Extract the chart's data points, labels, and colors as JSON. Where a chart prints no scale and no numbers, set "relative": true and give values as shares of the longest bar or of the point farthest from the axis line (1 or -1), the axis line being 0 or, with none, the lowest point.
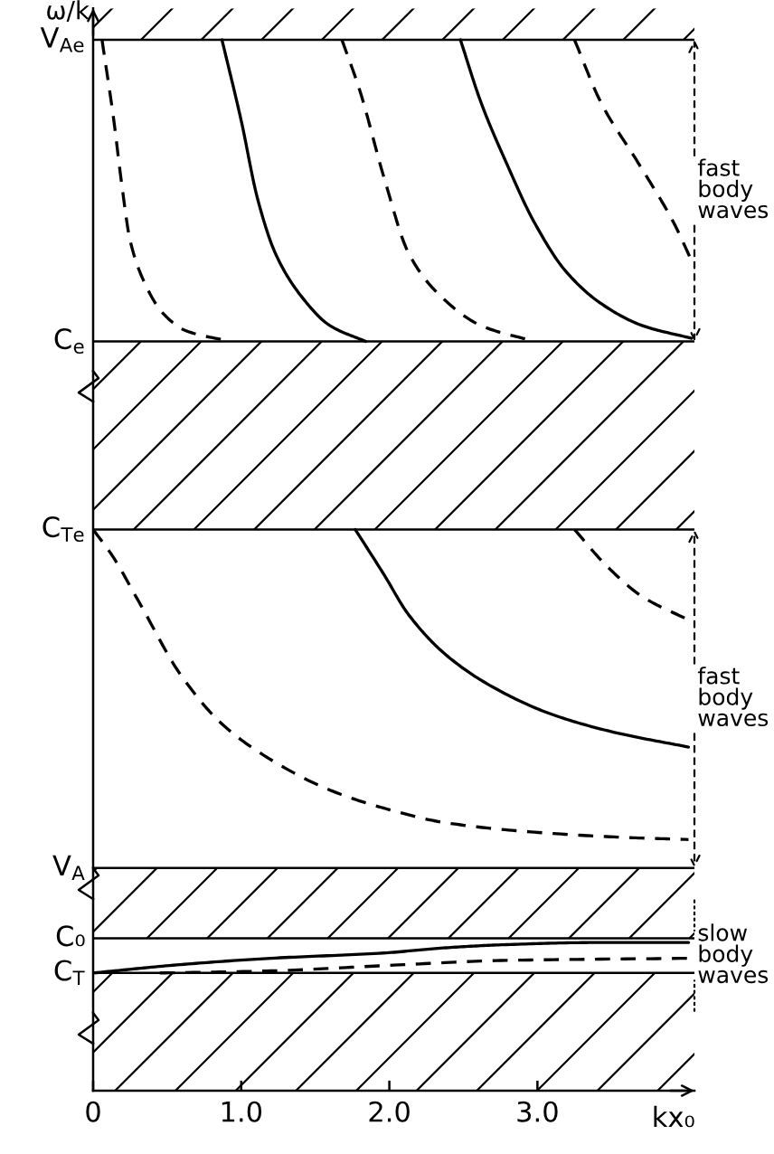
{
  "chart_data": {
    "type": "line",
    "relative": true,
    "xlabel": "kx₀",
    "ylabel": "ω/k",
    "xlim": [
      0,
      4.06
    ],
    "xticks": [
      0,
      {
        "value": 1,
        "label": "1.0"
      },
      {
        "value": 2,
        "label": "2.0"
      },
      {
        "value": 3,
        "label": "3.0"
      }
    ],
    "ref_lines": [
      {
        "axis": "y",
        "value": 1.0,
        "label": "V$_{Ae}$",
        "color": "#000000"
      },
      {
        "axis": "y",
        "value": 0.713,
        "label": "C$_{e}$",
        "color": "#000000"
      },
      {
        "axis": "y",
        "value": 0.534,
        "label": "C$_{Te}$",
        "color": "#000000"
      },
      {
        "axis": "y",
        "value": 0.212,
        "label": "V$_{A}$",
        "color": "#000000"
      },
      {
        "axis": "y",
        "value": 0.145,
        "label": "C₀",
        "color": "#000000"
      },
      {
        "axis": "y",
        "value": 0.112,
        "label": "C$_{T}$",
        "color": "#000000"
      }
    ],
    "bands": [
      {
        "axis": "y",
        "from": 1.0,
        "to": 1.03,
        "color": "#000000"
      },
      {
        "axis": "y",
        "from": 0.534,
        "to": 0.713,
        "color": "#000000"
      },
      {
        "axis": "y",
        "from": 0.145,
        "to": 0.212,
        "color": "#000000"
      },
      {
        "axis": "y",
        "from": 0,
        "to": 0.112,
        "color": "#000000"
      }
    ],
    "series": [
      {
        "color": "#000000",
        "line_style": "dashed",
        "x": [
          0.06,
          0.14,
          0.19,
          0.25,
          0.35,
          0.47,
          0.63,
          0.93
        ],
        "values": [
          1.0,
          0.923,
          0.866,
          0.809,
          0.768,
          0.74,
          0.723,
          0.713
        ]
      },
      {
        "color": "#000000",
        "line_style": "solid",
        "x": [
          0.87,
          1.0,
          1.11,
          1.23,
          1.4,
          1.6,
          1.84
        ],
        "values": [
          1.0,
          0.923,
          0.849,
          0.797,
          0.757,
          0.728,
          0.713
        ]
      },
      {
        "color": "#000000",
        "line_style": "dashed",
        "x": [
          1.68,
          1.8,
          1.97,
          2.13,
          2.34,
          2.62,
          2.98
        ],
        "values": [
          1.0,
          0.952,
          0.866,
          0.797,
          0.757,
          0.728,
          0.713
        ]
      },
      {
        "color": "#000000",
        "line_style": "solid",
        "x": [
          2.48,
          2.62,
          2.79,
          2.98,
          3.19,
          3.43,
          3.71,
          4.04
        ],
        "values": [
          1.0,
          0.94,
          0.883,
          0.826,
          0.78,
          0.749,
          0.728,
          0.716
        ]
      },
      {
        "color": "#000000",
        "line_style": "dashed",
        "x": [
          3.25,
          3.43,
          3.68,
          3.92,
          4.04
        ],
        "values": [
          1.0,
          0.94,
          0.883,
          0.826,
          0.79
        ]
      },
      {
        "color": "#000000",
        "line_style": "dashed",
        "x": [
          0,
          0.13,
          0.31,
          0.59,
          0.87,
          1.2,
          1.6,
          1.96,
          2.38,
          2.98,
          3.59,
          4.02
        ],
        "values": [
          0.534,
          0.509,
          0.465,
          0.396,
          0.349,
          0.315,
          0.286,
          0.269,
          0.255,
          0.246,
          0.241,
          0.239
        ]
      },
      {
        "color": "#000000",
        "line_style": "solid",
        "x": [
          1.77,
          1.96,
          2.13,
          2.38,
          2.7,
          3.1,
          3.52,
          4.02
        ],
        "values": [
          0.534,
          0.492,
          0.453,
          0.415,
          0.384,
          0.358,
          0.341,
          0.327
        ]
      },
      {
        "color": "#000000",
        "line_style": "dashed",
        "x": [
          3.25,
          3.47,
          3.71,
          4.02
        ],
        "values": [
          0.534,
          0.499,
          0.47,
          0.448
        ]
      },
      {
        "color": "#000000",
        "line_style": "solid",
        "x": [
          0,
          0.59,
          1.2,
          1.96,
          2.38,
          2.79,
          3.4,
          4.02
        ],
        "values": [
          0.112,
          0.12,
          0.126,
          0.131,
          0.136,
          0.139,
          0.141,
          0.141
        ]
      },
      {
        "color": "#000000",
        "line_style": "dashed",
        "x": [
          0.45,
          1.2,
          1.96,
          2.79,
          4.02
        ],
        "values": [
          0.112,
          0.114,
          0.119,
          0.124,
          0.126
        ]
      }
    ],
    "annotations": [
      "fast\nbody\nwaves",
      "fast\nbody\nwaves",
      "slow\nbody\nwaves"
    ]
  }
}
